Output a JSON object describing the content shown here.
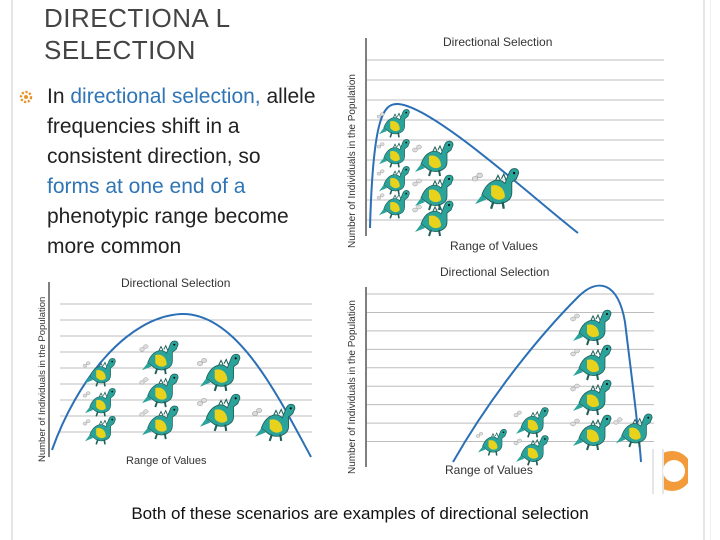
{
  "slide": {
    "title": "DIRECTIONA L SELECTION",
    "bullet": {
      "p1": "In ",
      "h1": "directional selection,",
      "p2": " allele frequencies shift in a consistent direction, so ",
      "h2": "forms at one end of a",
      "p3": " phenotypic range become more common"
    },
    "caption": "Both of these scenarios are examples of directional selection"
  },
  "charts": [
    {
      "title": "Directional Selection",
      "ylabel": "Number of Individuals in the Population",
      "xlabel": "Range of Values"
    },
    {
      "title": "Directional Selection",
      "ylabel": "Number of Individuals in the Population",
      "xlabel": "Range of Values"
    },
    {
      "title": "Directional Selection",
      "ylabel": "Number of Individuals in the Population",
      "xlabel": "Range of Values"
    }
  ],
  "colors": {
    "curve": "#2b6fb6",
    "dino_body": "#2aa39a",
    "dino_belly": "#e8d21c",
    "accent": "#f39a3a"
  },
  "icons": {
    "bullet": "gear-bullet-icon"
  }
}
